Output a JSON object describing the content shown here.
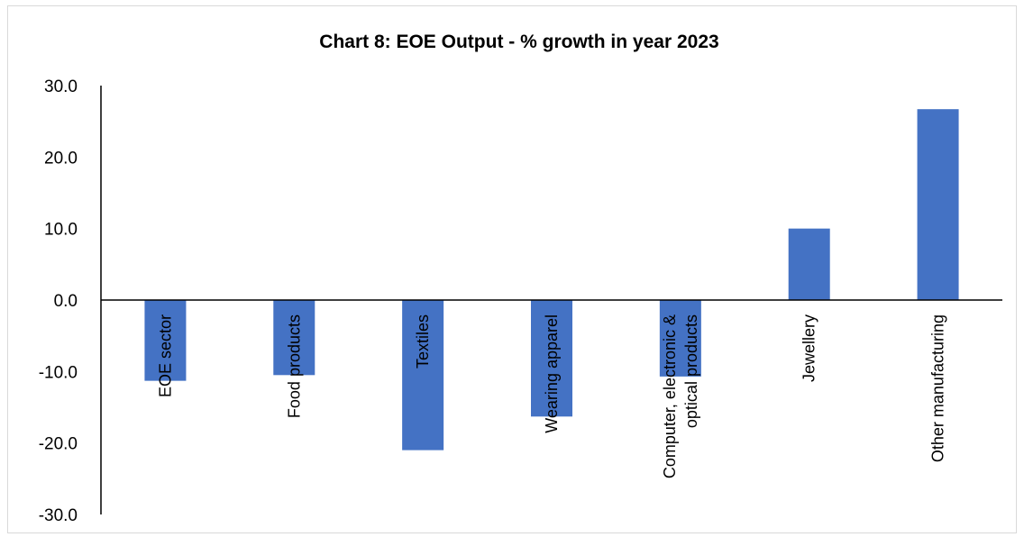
{
  "chart_data": {
    "type": "bar",
    "title": "Chart 8: EOE Output - % growth in year 2023",
    "categories": [
      [
        "EOE sector"
      ],
      [
        "Food products"
      ],
      [
        "Textiles"
      ],
      [
        "Wearing apparel"
      ],
      [
        "Computer, electronic &",
        "optical products"
      ],
      [
        "Jewellery"
      ],
      [
        "Other manufacturing"
      ]
    ],
    "values": [
      -11.3,
      -10.5,
      -21.0,
      -16.3,
      -10.7,
      10.0,
      26.7
    ],
    "ylim": [
      -30,
      30
    ],
    "yticks": [
      "30.0",
      "20.0",
      "10.0",
      "0.0",
      "-10.0",
      "-20.0",
      "-30.0"
    ],
    "bar_color": "#4472c4",
    "grid": false,
    "legend": "none"
  }
}
